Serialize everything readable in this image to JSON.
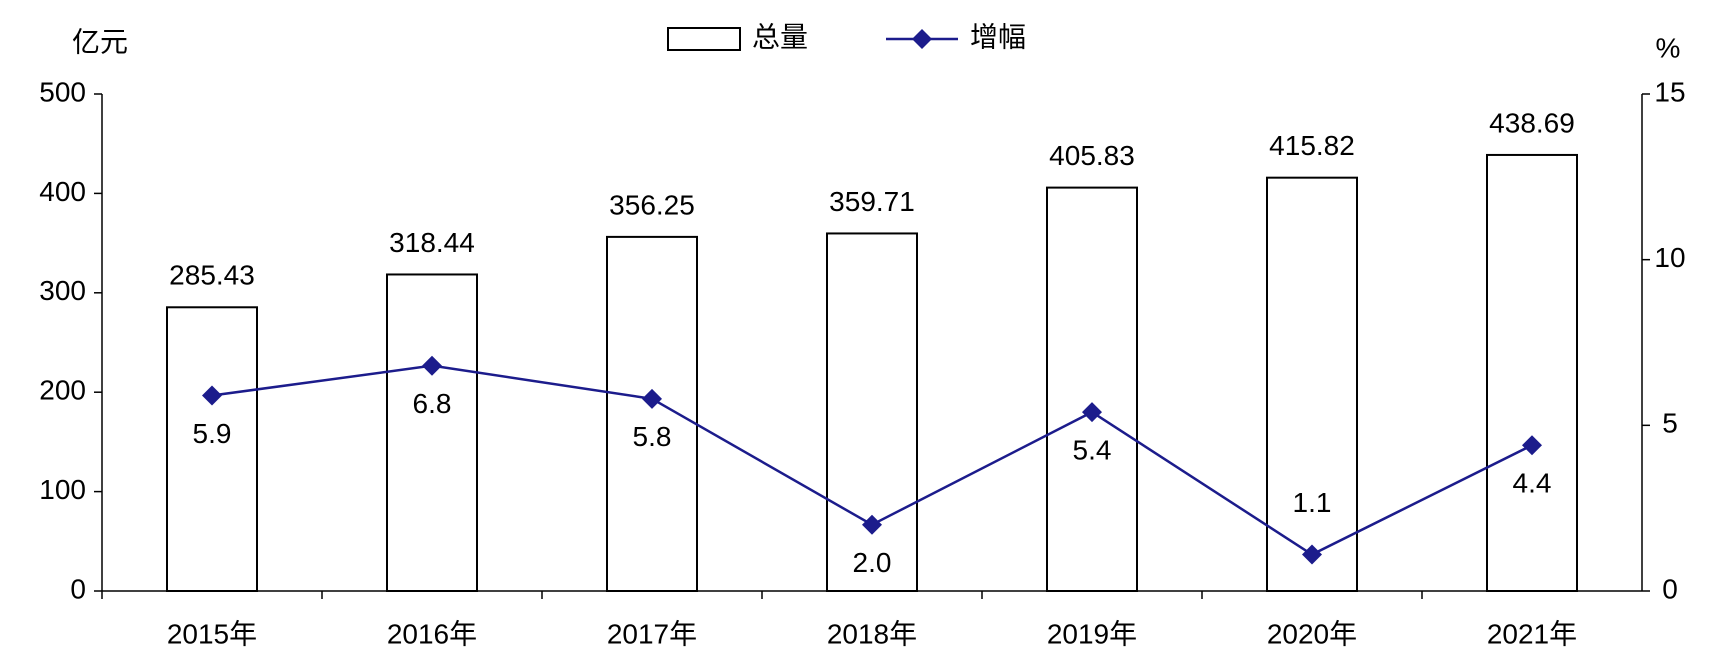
{
  "chart_data": {
    "type": "combo",
    "y_label": "亿元",
    "y2_label": "%",
    "categories": [
      "2015年",
      "2016年",
      "2017年",
      "2018年",
      "2019年",
      "2020年",
      "2021年"
    ],
    "series": [
      {
        "name": "总量",
        "type": "bar",
        "color": "#ffffff",
        "stroke": "#000000",
        "values": [
          285.43,
          318.44,
          356.25,
          359.71,
          405.83,
          415.82,
          438.69
        ]
      },
      {
        "name": "增幅",
        "type": "line",
        "axis": "y2",
        "color": "#1c1c8c",
        "values": [
          5.9,
          6.8,
          5.8,
          2.0,
          5.4,
          1.1,
          4.4
        ],
        "value_labels": [
          "5.9",
          "6.8",
          "5.8",
          "2.0",
          "5.4",
          "1.1",
          "4.4"
        ]
      }
    ],
    "ylim": [
      0,
      500
    ],
    "yticks": [
      0,
      100,
      200,
      300,
      400,
      500
    ],
    "y2lim": [
      0,
      15
    ],
    "y2ticks": [
      0,
      5,
      10,
      15
    ],
    "legend": "top"
  }
}
